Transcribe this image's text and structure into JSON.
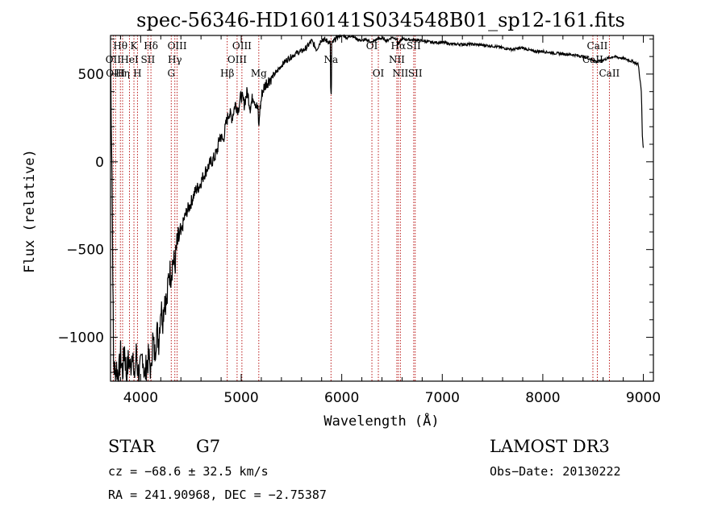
{
  "chart_data": {
    "type": "line",
    "title": "spec-56346-HD160141S034548B01_sp12-161.fits",
    "xlabel": "Wavelength (Å)",
    "ylabel": "Flux (relative)",
    "xlim": [
      3700,
      9100
    ],
    "ylim": [
      -1250,
      720
    ],
    "x_ticks": [
      4000,
      5000,
      6000,
      7000,
      8000,
      9000
    ],
    "y_ticks": [
      -1000,
      -500,
      0,
      500
    ],
    "grid": false,
    "series": [
      {
        "color": "#000000",
        "x": [
          3700,
          3715,
          3730,
          3745,
          3760,
          3780,
          3800,
          3820,
          3840,
          3860,
          3880,
          3900,
          3920,
          3940,
          3960,
          3980,
          4000,
          4020,
          4040,
          4060,
          4080,
          4100,
          4120,
          4140,
          4160,
          4180,
          4200,
          4220,
          4240,
          4260,
          4280,
          4300,
          4320,
          4340,
          4360,
          4380,
          4400,
          4430,
          4460,
          4490,
          4520,
          4550,
          4580,
          4610,
          4640,
          4670,
          4700,
          4730,
          4760,
          4790,
          4820,
          4850,
          4880,
          4910,
          4940,
          4970,
          5000,
          5030,
          5060,
          5090,
          5120,
          5150,
          5180,
          5210,
          5250,
          5300,
          5350,
          5400,
          5450,
          5500,
          5550,
          5600,
          5650,
          5700,
          5750,
          5800,
          5850,
          5890,
          5895,
          5900,
          5950,
          6000,
          6050,
          6100,
          6150,
          6200,
          6250,
          6300,
          6350,
          6400,
          6450,
          6500,
          6550,
          6563,
          6600,
          6700,
          6800,
          6900,
          7000,
          7100,
          7200,
          7300,
          7400,
          7500,
          7600,
          7700,
          7800,
          7900,
          8000,
          8100,
          8200,
          8300,
          8400,
          8500,
          8542,
          8600,
          8700,
          8800,
          8900,
          8950,
          8980,
          8990,
          9000
        ],
        "y": [
          610,
          -60,
          -1150,
          -1200,
          -1170,
          -1230,
          -1100,
          -1200,
          -1060,
          -1230,
          -1120,
          -1180,
          -1040,
          -1200,
          -1070,
          -1230,
          -1180,
          -1090,
          -1230,
          -1150,
          -1120,
          -1180,
          -1010,
          -1100,
          -960,
          -1020,
          -820,
          -890,
          -760,
          -820,
          -620,
          -640,
          -560,
          -590,
          -480,
          -440,
          -420,
          -330,
          -280,
          -250,
          -200,
          -160,
          -140,
          -100,
          -60,
          -30,
          0,
          20,
          60,
          150,
          120,
          220,
          280,
          250,
          330,
          300,
          380,
          330,
          400,
          310,
          380,
          320,
          270,
          400,
          450,
          480,
          510,
          550,
          580,
          600,
          620,
          630,
          650,
          690,
          640,
          700,
          690,
          680,
          390,
          670,
          710,
          730,
          705,
          720,
          700,
          690,
          695,
          680,
          700,
          705,
          690,
          710,
          700,
          670,
          700,
          695,
          690,
          680,
          680,
          670,
          670,
          670,
          665,
          660,
          650,
          640,
          650,
          630,
          630,
          620,
          615,
          610,
          600,
          580,
          570,
          580,
          600,
          590,
          570,
          555,
          400,
          150,
          80
        ],
        "minima": [
          {
            "x": 3933,
            "y": -1230
          },
          {
            "x": 3968,
            "y": -1220
          },
          {
            "x": 4101,
            "y": -1180
          },
          {
            "x": 4861,
            "y": 280
          },
          {
            "x": 5175,
            "y": 190
          },
          {
            "x": 5893,
            "y": 390
          },
          {
            "x": 6563,
            "y": 680
          },
          {
            "x": 8542,
            "y": 610
          },
          {
            "x": 8662,
            "y": 600
          }
        ]
      }
    ],
    "line_marks": [
      {
        "x": 3727,
        "label": "OII",
        "row": 2
      },
      {
        "x": 3750,
        "label": "OIII",
        "row": 3
      },
      {
        "x": 3798,
        "label": "Hθ",
        "row": 1
      },
      {
        "x": 3820,
        "label": "Hη",
        "row": 3
      },
      {
        "x": 3889,
        "label": "HeI",
        "row": 2
      },
      {
        "x": 3933,
        "label": "K",
        "row": 1
      },
      {
        "x": 3968,
        "label": "H",
        "row": 3
      },
      {
        "x": 4072,
        "label": "SII",
        "row": 2
      },
      {
        "x": 4102,
        "label": "Hδ",
        "row": 1
      },
      {
        "x": 4304,
        "label": "G",
        "row": 3
      },
      {
        "x": 4340,
        "label": "Hγ",
        "row": 2
      },
      {
        "x": 4363,
        "label": "OIII",
        "row": 1
      },
      {
        "x": 4861,
        "label": "Hβ",
        "row": 3
      },
      {
        "x": 4959,
        "label": "OIII",
        "row": 2
      },
      {
        "x": 5007,
        "label": "OIII",
        "row": 1
      },
      {
        "x": 5175,
        "label": "Mg",
        "row": 3
      },
      {
        "x": 5893,
        "label": "Na",
        "row": 2
      },
      {
        "x": 6300,
        "label": "OI",
        "row": 1
      },
      {
        "x": 6364,
        "label": "OI",
        "row": 3
      },
      {
        "x": 6548,
        "label": "NII",
        "row": 2
      },
      {
        "x": 6563,
        "label": "Hα",
        "row": 1
      },
      {
        "x": 6583,
        "label": "NII",
        "row": 3
      },
      {
        "x": 6716,
        "label": "SII",
        "row": 1
      },
      {
        "x": 6731,
        "label": "SII",
        "row": 3
      },
      {
        "x": 8498,
        "label": "CaII",
        "row": 2
      },
      {
        "x": 8542,
        "label": "CaII",
        "row": 1
      },
      {
        "x": 8662,
        "label": "CaII",
        "row": 3
      }
    ]
  },
  "info": {
    "object_type": "STAR",
    "subclass": "G7",
    "survey": "LAMOST DR3",
    "cz": "cz = −68.6 ± 32.5 km/s",
    "obs_date": "Obs−Date: 20130222",
    "coords": "RA = 241.90968, DEC =  −2.75387"
  }
}
